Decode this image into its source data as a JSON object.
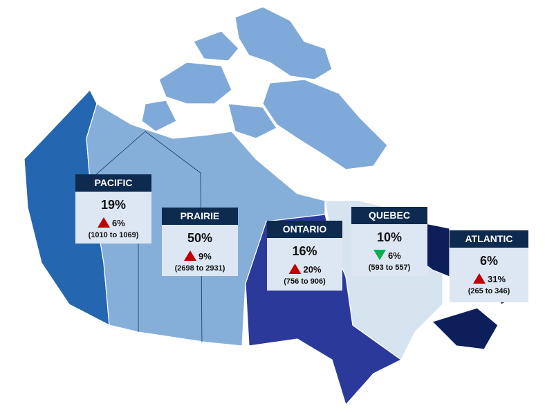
{
  "regions": [
    {
      "name": "PACIFIC",
      "share": "19%",
      "change": "6%",
      "direction": "up",
      "range": "(1010 to 1069)"
    },
    {
      "name": "PRAIRIE",
      "share": "50%",
      "change": "9%",
      "direction": "up",
      "range": "(2698 to 2931)"
    },
    {
      "name": "ONTARIO",
      "share": "16%",
      "change": "20%",
      "direction": "up",
      "range": "(756 to 906)"
    },
    {
      "name": "QUEBEC",
      "share": "10%",
      "change": "6%",
      "direction": "down",
      "range": "(593 to 557)"
    },
    {
      "name": "ATLANTIC",
      "share": "6%",
      "change": "31%",
      "direction": "up",
      "range": "(265 to 346)"
    }
  ]
}
